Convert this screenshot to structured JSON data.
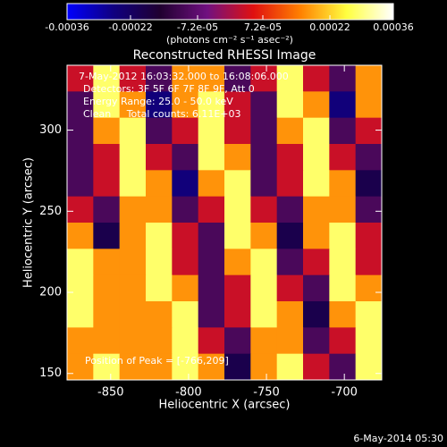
{
  "chart_data": {
    "type": "heatmap",
    "title": "Reconstructed RHESSI Image",
    "xlabel": "Heliocentric X (arcsec)",
    "ylabel": "Heliocentric Y (arcsec)",
    "colorbar_label": "(photons cm⁻² s⁻¹ asec⁻²)",
    "annotations": [
      "7-May-2012 16:03:32.000 to 16:08:06.000",
      "Detectors: 3F 5F 6F 7F 8F 9F, Att 0",
      "Energy Range: 25.0 - 50.0 keV",
      "Clean     Total counts: 6.11E+03",
      "Position of Peak = [-766,209]"
    ],
    "footer": "6-May-2014 05:30",
    "xlim": [
      -878,
      -676
    ],
    "ylim": [
      146,
      340
    ],
    "xticks": [
      -850,
      -800,
      -750,
      -700
    ],
    "yticks": [
      150,
      200,
      250,
      300
    ],
    "zlim": [
      -0.00036,
      0.00036
    ],
    "zticks": [
      -0.00036,
      -0.00022,
      {
        "value": -7.2e-05,
        "label": "-7.2e-05"
      },
      {
        "value": 7.2e-05,
        "label": "7.2e-05"
      },
      0.00022,
      0.00036
    ],
    "colormap": [
      "#0000ff",
      "#100080",
      "#200030",
      "#701080",
      "#e01010",
      "#ff8000",
      "#ffff40",
      "#ffffff"
    ],
    "z": [
      [
        3e-05,
        0.00028,
        3e-05,
        -0.0001,
        0.00017,
        0.00017,
        -0.0001,
        3e-05,
        0.00028,
        3e-05,
        -0.0001,
        0.00017
      ],
      [
        -0.0001,
        0.00028,
        0.00017,
        -0.00025,
        0.00017,
        0.00028,
        3e-05,
        -0.0001,
        0.00028,
        0.00017,
        -0.00025,
        0.00017
      ],
      [
        -0.0001,
        0.00017,
        0.00028,
        -0.0001,
        3e-05,
        0.00028,
        3e-05,
        -0.0001,
        0.00017,
        0.00028,
        -0.0001,
        3e-05
      ],
      [
        -0.0001,
        3e-05,
        0.00028,
        3e-05,
        -0.0001,
        0.00028,
        0.00017,
        -0.0001,
        3e-05,
        0.00028,
        3e-05,
        -0.0001
      ],
      [
        -0.0001,
        3e-05,
        0.00028,
        0.00017,
        -0.00025,
        0.00017,
        0.00028,
        -0.0001,
        3e-05,
        0.00028,
        0.00017,
        -0.00019
      ],
      [
        3e-05,
        -0.0001,
        0.00017,
        0.00017,
        -0.0001,
        3e-05,
        0.00028,
        3e-05,
        -0.0001,
        0.00017,
        0.00017,
        -0.0001
      ],
      [
        0.00017,
        -0.00019,
        0.00017,
        0.00028,
        3e-05,
        -0.0001,
        0.00028,
        0.00017,
        -0.00019,
        0.00017,
        0.00028,
        3e-05
      ],
      [
        0.00028,
        0.00017,
        0.00017,
        0.00028,
        3e-05,
        -0.0001,
        0.00017,
        0.00028,
        -0.0001,
        3e-05,
        0.00028,
        3e-05
      ],
      [
        0.00028,
        0.00017,
        0.00017,
        0.00028,
        0.00017,
        -0.0001,
        3e-05,
        0.00028,
        3e-05,
        -0.0001,
        0.00028,
        0.00017
      ],
      [
        0.00028,
        0.00017,
        0.00017,
        0.00017,
        0.00028,
        -0.0001,
        3e-05,
        0.00028,
        0.00017,
        -0.00019,
        0.00017,
        0.00028
      ],
      [
        0.00017,
        0.00017,
        0.00017,
        0.00017,
        0.00028,
        3e-05,
        -0.0001,
        0.00017,
        0.00017,
        -0.0001,
        3e-05,
        0.00028
      ],
      [
        0.00017,
        0.00028,
        0.00017,
        0.00017,
        0.00028,
        0.00017,
        -0.00019,
        0.00017,
        0.00028,
        3e-05,
        -0.0001,
        0.00028
      ]
    ]
  }
}
